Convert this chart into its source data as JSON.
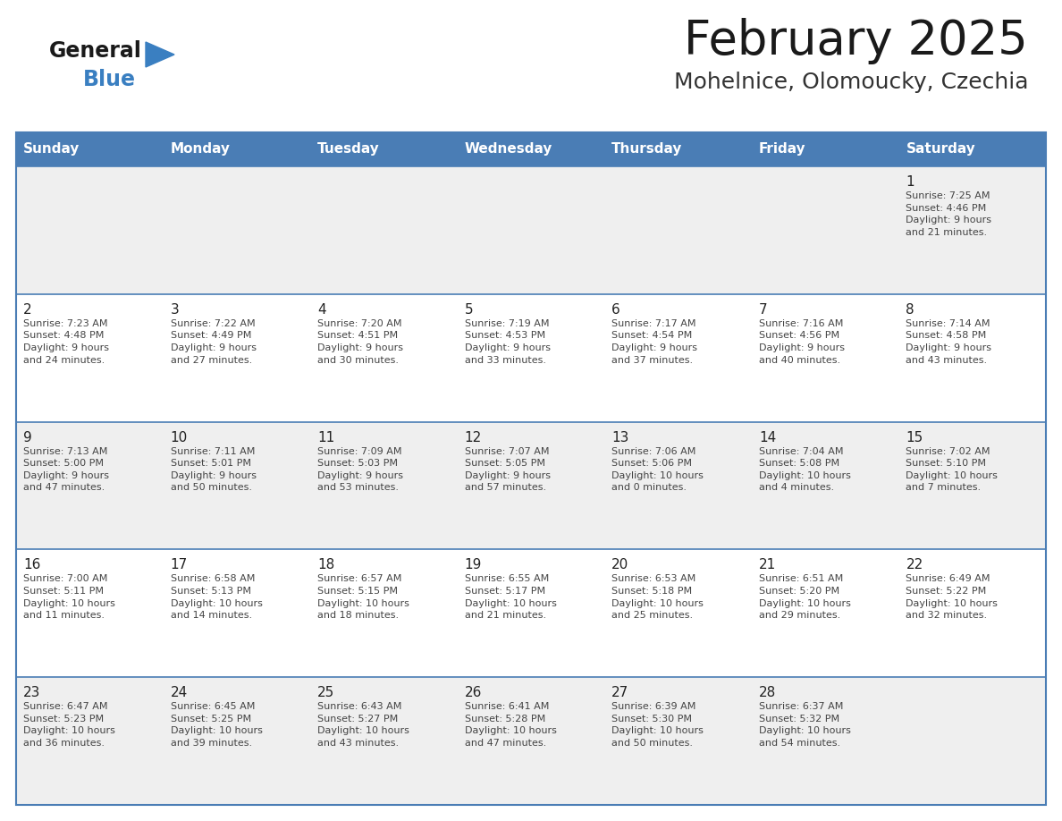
{
  "title": "February 2025",
  "subtitle": "Mohelnice, Olomoucky, Czechia",
  "header_bg": "#4a7db5",
  "header_text": "#ffffff",
  "header_days": [
    "Sunday",
    "Monday",
    "Tuesday",
    "Wednesday",
    "Thursday",
    "Friday",
    "Saturday"
  ],
  "row_bg_odd": "#efefef",
  "row_bg_even": "#ffffff",
  "cell_text_color": "#444444",
  "day_number_color": "#222222",
  "border_color": "#4a7db5",
  "title_color": "#1a1a1a",
  "subtitle_color": "#333333",
  "logo_general_color": "#1a1a1a",
  "logo_blue_color": "#3a7fc1",
  "weeks": [
    [
      {
        "day": null,
        "info": ""
      },
      {
        "day": null,
        "info": ""
      },
      {
        "day": null,
        "info": ""
      },
      {
        "day": null,
        "info": ""
      },
      {
        "day": null,
        "info": ""
      },
      {
        "day": null,
        "info": ""
      },
      {
        "day": 1,
        "info": "Sunrise: 7:25 AM\nSunset: 4:46 PM\nDaylight: 9 hours\nand 21 minutes."
      }
    ],
    [
      {
        "day": 2,
        "info": "Sunrise: 7:23 AM\nSunset: 4:48 PM\nDaylight: 9 hours\nand 24 minutes."
      },
      {
        "day": 3,
        "info": "Sunrise: 7:22 AM\nSunset: 4:49 PM\nDaylight: 9 hours\nand 27 minutes."
      },
      {
        "day": 4,
        "info": "Sunrise: 7:20 AM\nSunset: 4:51 PM\nDaylight: 9 hours\nand 30 minutes."
      },
      {
        "day": 5,
        "info": "Sunrise: 7:19 AM\nSunset: 4:53 PM\nDaylight: 9 hours\nand 33 minutes."
      },
      {
        "day": 6,
        "info": "Sunrise: 7:17 AM\nSunset: 4:54 PM\nDaylight: 9 hours\nand 37 minutes."
      },
      {
        "day": 7,
        "info": "Sunrise: 7:16 AM\nSunset: 4:56 PM\nDaylight: 9 hours\nand 40 minutes."
      },
      {
        "day": 8,
        "info": "Sunrise: 7:14 AM\nSunset: 4:58 PM\nDaylight: 9 hours\nand 43 minutes."
      }
    ],
    [
      {
        "day": 9,
        "info": "Sunrise: 7:13 AM\nSunset: 5:00 PM\nDaylight: 9 hours\nand 47 minutes."
      },
      {
        "day": 10,
        "info": "Sunrise: 7:11 AM\nSunset: 5:01 PM\nDaylight: 9 hours\nand 50 minutes."
      },
      {
        "day": 11,
        "info": "Sunrise: 7:09 AM\nSunset: 5:03 PM\nDaylight: 9 hours\nand 53 minutes."
      },
      {
        "day": 12,
        "info": "Sunrise: 7:07 AM\nSunset: 5:05 PM\nDaylight: 9 hours\nand 57 minutes."
      },
      {
        "day": 13,
        "info": "Sunrise: 7:06 AM\nSunset: 5:06 PM\nDaylight: 10 hours\nand 0 minutes."
      },
      {
        "day": 14,
        "info": "Sunrise: 7:04 AM\nSunset: 5:08 PM\nDaylight: 10 hours\nand 4 minutes."
      },
      {
        "day": 15,
        "info": "Sunrise: 7:02 AM\nSunset: 5:10 PM\nDaylight: 10 hours\nand 7 minutes."
      }
    ],
    [
      {
        "day": 16,
        "info": "Sunrise: 7:00 AM\nSunset: 5:11 PM\nDaylight: 10 hours\nand 11 minutes."
      },
      {
        "day": 17,
        "info": "Sunrise: 6:58 AM\nSunset: 5:13 PM\nDaylight: 10 hours\nand 14 minutes."
      },
      {
        "day": 18,
        "info": "Sunrise: 6:57 AM\nSunset: 5:15 PM\nDaylight: 10 hours\nand 18 minutes."
      },
      {
        "day": 19,
        "info": "Sunrise: 6:55 AM\nSunset: 5:17 PM\nDaylight: 10 hours\nand 21 minutes."
      },
      {
        "day": 20,
        "info": "Sunrise: 6:53 AM\nSunset: 5:18 PM\nDaylight: 10 hours\nand 25 minutes."
      },
      {
        "day": 21,
        "info": "Sunrise: 6:51 AM\nSunset: 5:20 PM\nDaylight: 10 hours\nand 29 minutes."
      },
      {
        "day": 22,
        "info": "Sunrise: 6:49 AM\nSunset: 5:22 PM\nDaylight: 10 hours\nand 32 minutes."
      }
    ],
    [
      {
        "day": 23,
        "info": "Sunrise: 6:47 AM\nSunset: 5:23 PM\nDaylight: 10 hours\nand 36 minutes."
      },
      {
        "day": 24,
        "info": "Sunrise: 6:45 AM\nSunset: 5:25 PM\nDaylight: 10 hours\nand 39 minutes."
      },
      {
        "day": 25,
        "info": "Sunrise: 6:43 AM\nSunset: 5:27 PM\nDaylight: 10 hours\nand 43 minutes."
      },
      {
        "day": 26,
        "info": "Sunrise: 6:41 AM\nSunset: 5:28 PM\nDaylight: 10 hours\nand 47 minutes."
      },
      {
        "day": 27,
        "info": "Sunrise: 6:39 AM\nSunset: 5:30 PM\nDaylight: 10 hours\nand 50 minutes."
      },
      {
        "day": 28,
        "info": "Sunrise: 6:37 AM\nSunset: 5:32 PM\nDaylight: 10 hours\nand 54 minutes."
      },
      {
        "day": null,
        "info": ""
      }
    ]
  ],
  "fig_width": 11.88,
  "fig_height": 9.18,
  "dpi": 100
}
